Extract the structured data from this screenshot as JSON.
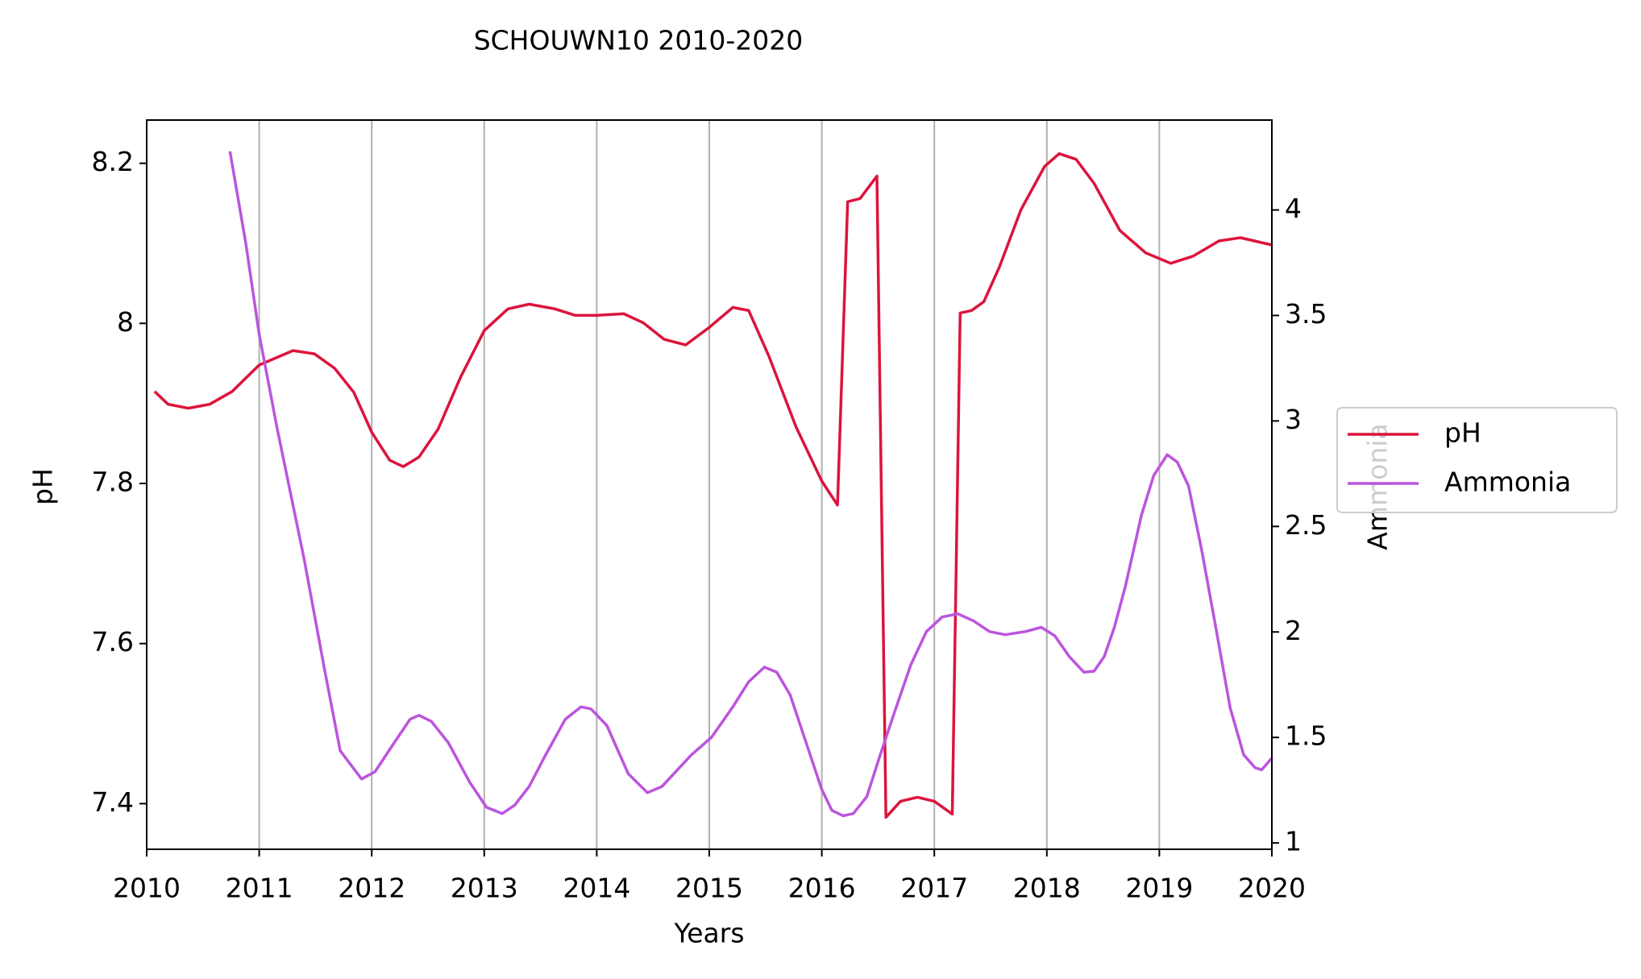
{
  "chart_data": {
    "type": "line",
    "title": "SCHOUWN10 2010-2020",
    "x_label": "Years",
    "y_label": "pH",
    "y2_label": "Ammonia",
    "xlim": [
      2010,
      2020
    ],
    "xticks": [
      2010,
      2011,
      2012,
      2013,
      2014,
      2015,
      2016,
      2017,
      2018,
      2019,
      2020
    ],
    "ylim": [
      7.343,
      8.254
    ],
    "yticks": [
      7.4,
      7.6,
      7.8,
      8.0,
      8.2
    ],
    "y2lim": [
      0.97,
      4.426
    ],
    "y2ticks": [
      1.0,
      1.5,
      2.0,
      2.5,
      3.0,
      3.5,
      4.0
    ],
    "grid": "x",
    "legend": "right",
    "series": [
      {
        "name": "pH",
        "color": "#dc143c",
        "x": [
          2010.07,
          2010.19,
          2010.37,
          2010.56,
          2010.76,
          2011.0,
          2011.3,
          2011.49,
          2011.67,
          2011.84,
          2012.0,
          2012.16,
          2012.28,
          2012.42,
          2012.59,
          2012.79,
          2013.0,
          2013.21,
          2013.4,
          2013.63,
          2013.81,
          2014.0,
          2014.24,
          2014.41,
          2014.6,
          2014.79,
          2015.0,
          2015.21,
          2015.35,
          2015.53,
          2015.77,
          2016.0,
          2016.14,
          2016.23,
          2016.34,
          2016.49,
          2016.57,
          2016.7,
          2016.85,
          2017.0,
          2017.16,
          2017.23,
          2017.33,
          2017.44,
          2017.58,
          2017.77,
          2017.98,
          2018.11,
          2018.26,
          2018.42,
          2018.65,
          2018.88,
          2019.1,
          2019.3,
          2019.53,
          2019.72,
          2020.0
        ],
        "values": [
          7.915,
          7.899,
          7.894,
          7.899,
          7.915,
          7.948,
          7.966,
          7.962,
          7.944,
          7.914,
          7.864,
          7.829,
          7.821,
          7.833,
          7.868,
          7.933,
          7.991,
          8.018,
          8.024,
          8.018,
          8.01,
          8.01,
          8.012,
          8.001,
          7.98,
          7.973,
          7.995,
          8.02,
          8.016,
          7.959,
          7.871,
          7.803,
          7.773,
          8.152,
          8.156,
          8.184,
          7.383,
          7.403,
          7.408,
          7.403,
          7.387,
          8.013,
          8.016,
          8.027,
          8.071,
          8.142,
          8.196,
          8.212,
          8.205,
          8.175,
          8.116,
          8.088,
          8.075,
          8.084,
          8.103,
          8.107,
          8.098
        ]
      },
      {
        "name": "Ammonia",
        "color": "#bb55dd",
        "axis": "y2",
        "x": [
          2010.74,
          2010.88,
          2011.0,
          2011.16,
          2011.4,
          2011.58,
          2011.72,
          2011.91,
          2012.03,
          2012.19,
          2012.34,
          2012.42,
          2012.53,
          2012.68,
          2012.87,
          2013.02,
          2013.16,
          2013.27,
          2013.4,
          2013.53,
          2013.72,
          2013.86,
          2013.95,
          2014.09,
          2014.28,
          2014.45,
          2014.58,
          2014.84,
          2015.02,
          2015.21,
          2015.35,
          2015.49,
          2015.6,
          2015.72,
          2015.86,
          2016.0,
          2016.09,
          2016.19,
          2016.28,
          2016.4,
          2016.51,
          2016.65,
          2016.79,
          2016.93,
          2017.07,
          2017.21,
          2017.35,
          2017.49,
          2017.63,
          2017.81,
          2017.95,
          2018.07,
          2018.2,
          2018.33,
          2018.42,
          2018.51,
          2018.6,
          2018.7,
          2018.84,
          2018.95,
          2019.07,
          2019.16,
          2019.26,
          2019.38,
          2019.51,
          2019.63,
          2019.75,
          2019.85,
          2019.91,
          2020.0
        ],
        "values": [
          4.278,
          3.846,
          3.41,
          2.964,
          2.344,
          1.823,
          1.437,
          1.303,
          1.338,
          1.467,
          1.586,
          1.605,
          1.576,
          1.476,
          1.288,
          1.169,
          1.139,
          1.179,
          1.268,
          1.402,
          1.586,
          1.645,
          1.635,
          1.556,
          1.328,
          1.238,
          1.268,
          1.417,
          1.501,
          1.645,
          1.764,
          1.833,
          1.809,
          1.7,
          1.476,
          1.253,
          1.154,
          1.129,
          1.139,
          1.219,
          1.402,
          1.625,
          1.843,
          2.002,
          2.071,
          2.086,
          2.052,
          2.002,
          1.987,
          2.002,
          2.022,
          1.982,
          1.883,
          1.809,
          1.814,
          1.883,
          2.022,
          2.22,
          2.552,
          2.741,
          2.84,
          2.805,
          2.691,
          2.379,
          1.997,
          1.64,
          1.417,
          1.357,
          1.347,
          1.402
        ]
      }
    ]
  }
}
